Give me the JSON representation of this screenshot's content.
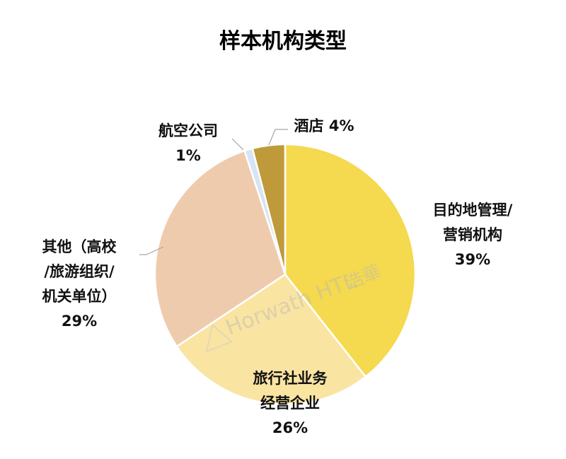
{
  "chart_data": {
    "type": "pie",
    "title": "样本机构类型",
    "slices": [
      {
        "name": "目的地管理/营销机构",
        "value": 39,
        "label_lines": [
          "目的地管理/",
          "营销机构",
          "39%"
        ],
        "color": "#f5d94e"
      },
      {
        "name": "旅行社业务经营企业",
        "value": 26,
        "label_lines": [
          "旅行社业务",
          "经营企业",
          "26%"
        ],
        "color": "#f9e4a2"
      },
      {
        "name": "其他（高校/旅游组织/机关单位）",
        "value": 29,
        "label_lines": [
          "其他（高校",
          "/旅游组织/",
          "机关单位）",
          "29%"
        ],
        "color": "#efcbae"
      },
      {
        "name": "航空公司",
        "value": 1,
        "label_lines": [
          "航空公司",
          "1%"
        ],
        "color": "#d6e4f3"
      },
      {
        "name": "酒店",
        "value": 4,
        "label_lines": [
          "酒店 4%"
        ],
        "color": "#bf9a3a"
      }
    ],
    "start_angle_deg": 0,
    "direction": "clockwise",
    "legend": "none"
  },
  "watermark": {
    "text": "Horwath HTL",
    "text_cn": "浩華"
  }
}
